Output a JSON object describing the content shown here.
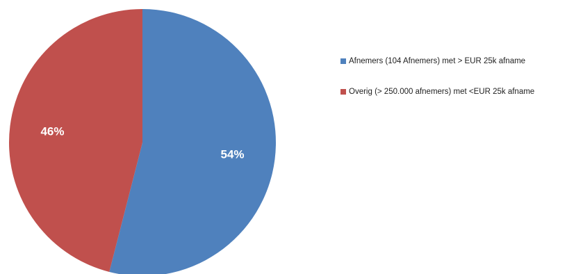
{
  "chart_data": {
    "type": "pie",
    "title": "",
    "slices": [
      {
        "label": "Afnemers (104 Afnemers) met > EUR 25k afname",
        "value": 54,
        "value_label": "54%",
        "color": "#4F81BD"
      },
      {
        "label": "Overig (> 250.000 afnemers) met <EUR 25k afname",
        "value": 46,
        "value_label": "46%",
        "color": "#C0504D"
      }
    ],
    "start_angle": "12 o'clock",
    "direction": "clockwise",
    "legend_position": "right"
  }
}
